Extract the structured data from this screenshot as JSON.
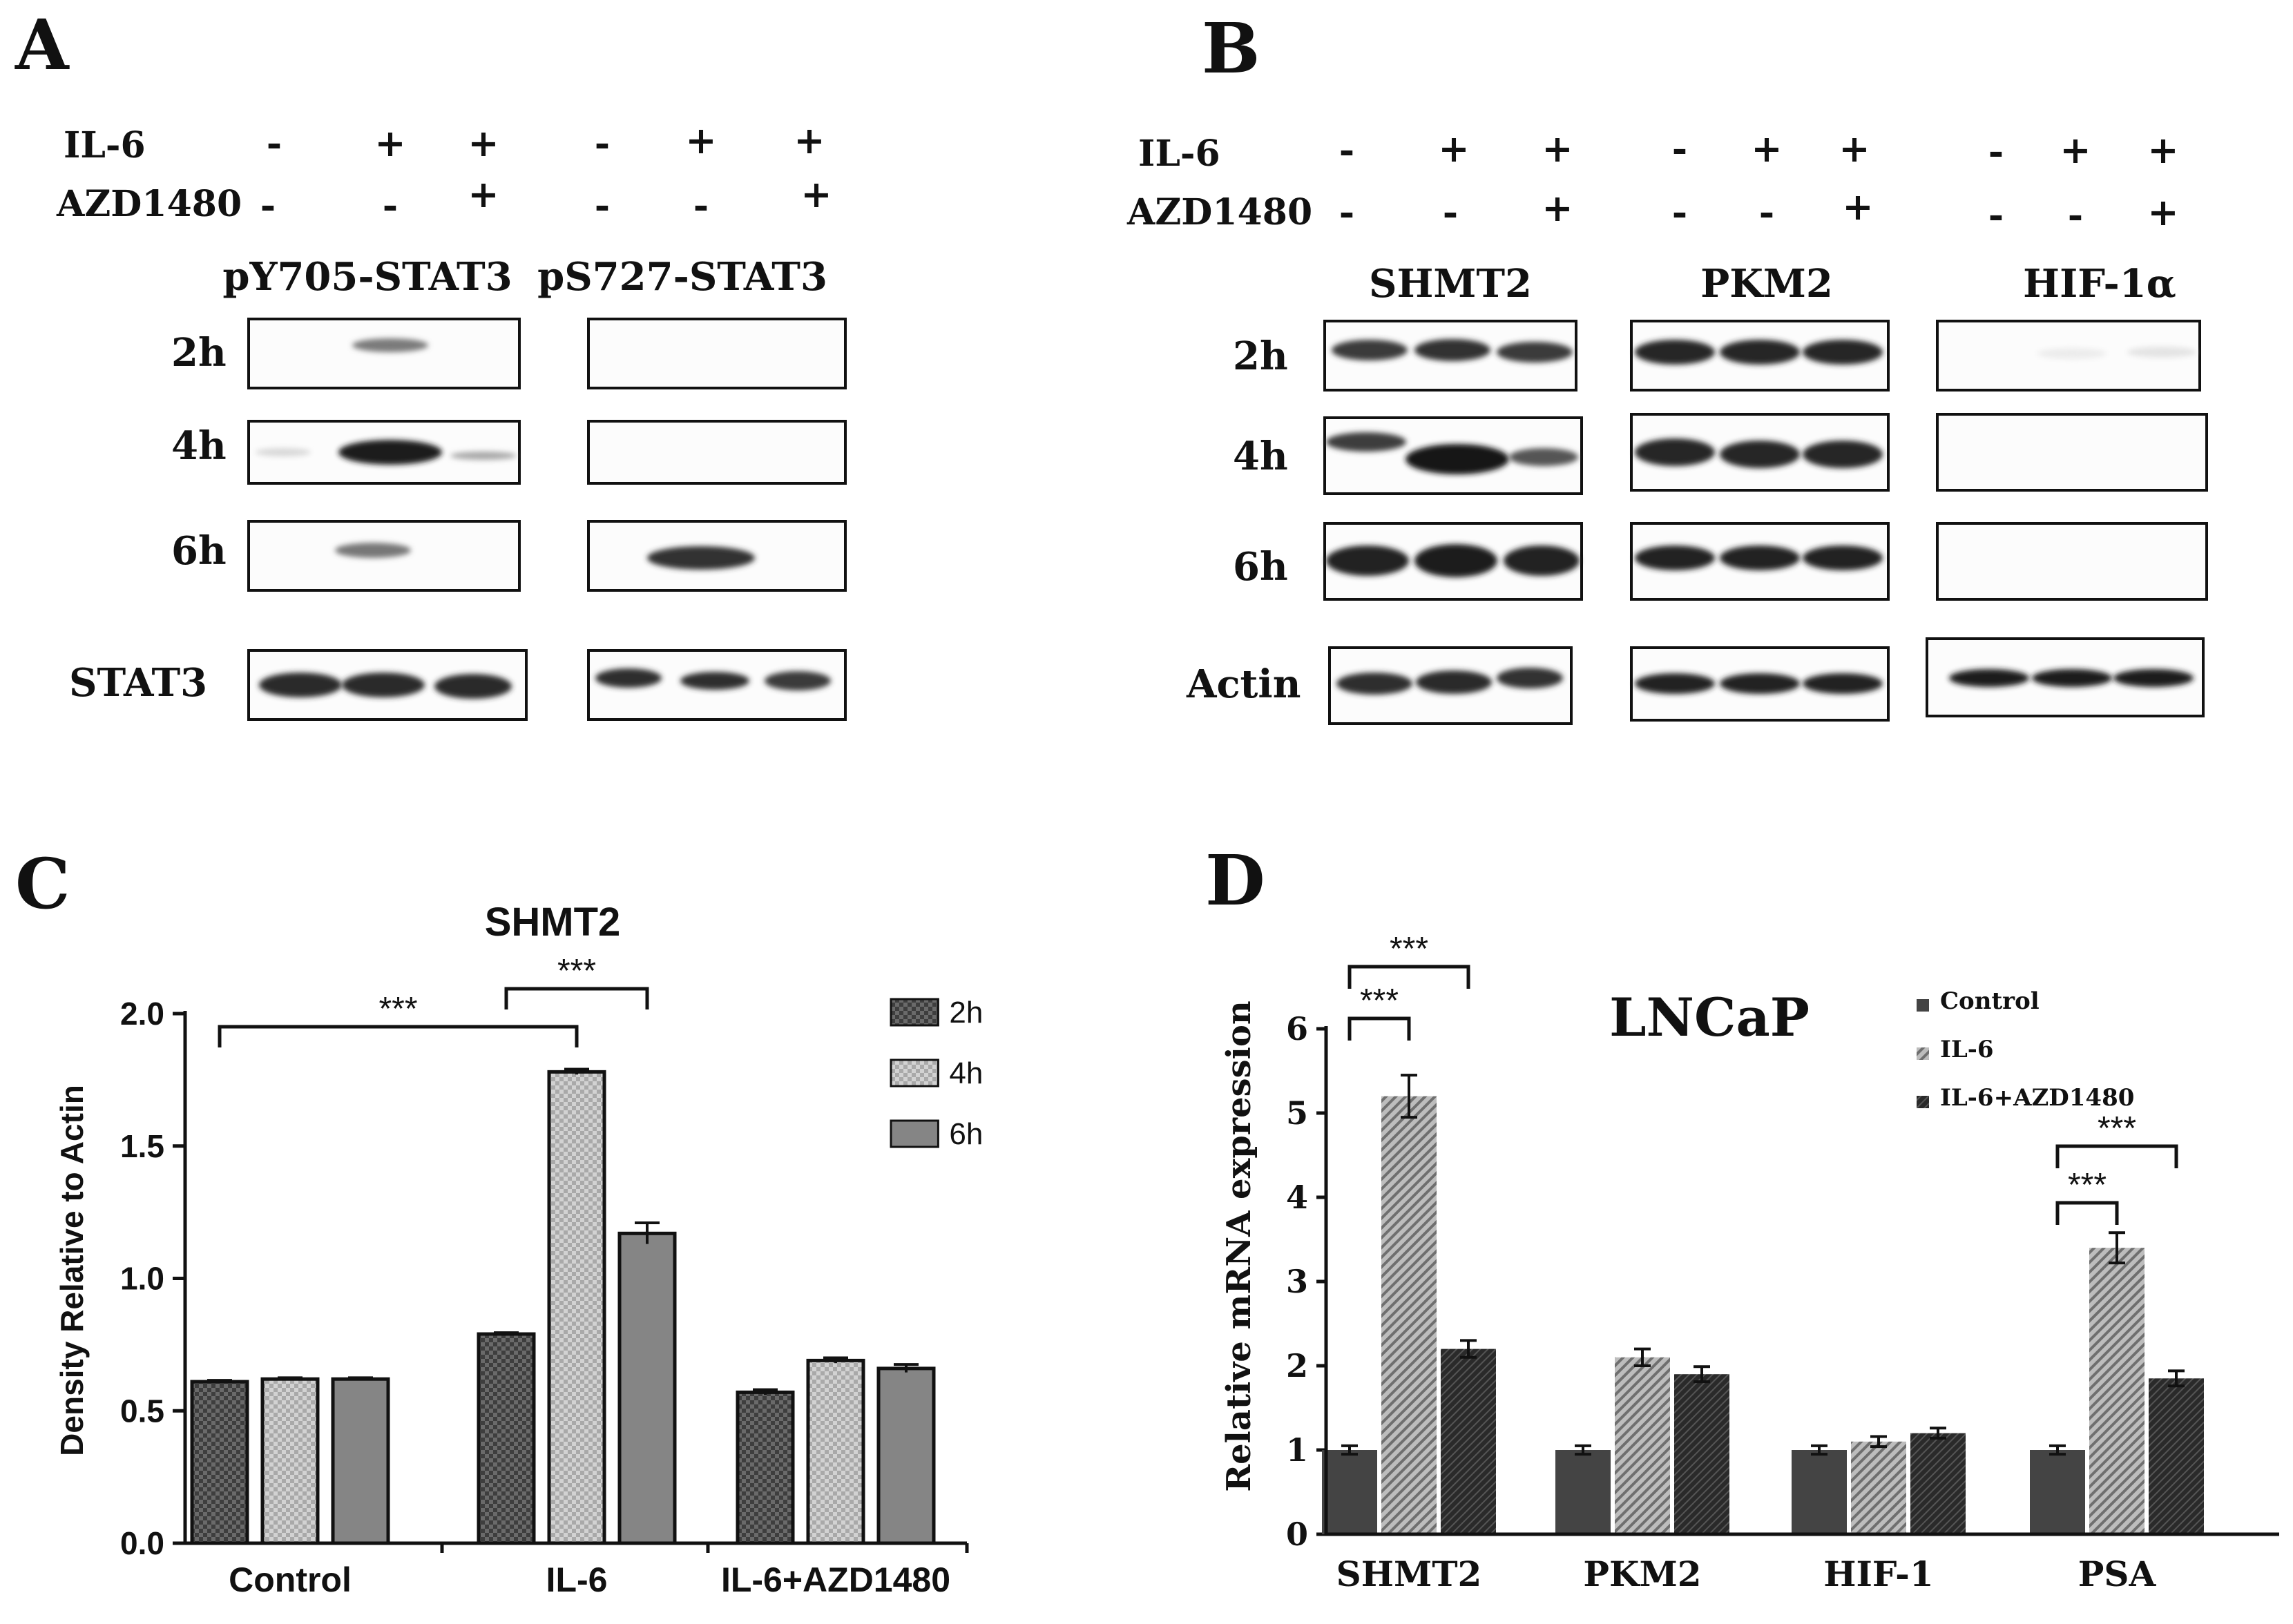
{
  "panels": {
    "A": {
      "label": "A",
      "treatments": [
        {
          "name": "IL-6",
          "left": [
            "-",
            "+",
            "+"
          ],
          "right": [
            "-",
            "+",
            "+"
          ]
        },
        {
          "name": "AZD1480",
          "left": [
            "-",
            "-",
            "+"
          ],
          "right": [
            "-",
            "-",
            "+"
          ]
        }
      ],
      "headers": [
        "pY705-STAT3",
        "pS727-STAT3"
      ],
      "times": [
        "2h",
        "4h",
        "6h"
      ],
      "loading": "STAT3"
    },
    "B": {
      "label": "B",
      "treatments": [
        {
          "name": "IL-6",
          "groups": [
            [
              "-",
              "+",
              "+"
            ],
            [
              "-",
              "+",
              "+"
            ],
            [
              "-",
              "+",
              "+"
            ]
          ]
        },
        {
          "name": "AZD1480",
          "groups": [
            [
              "-",
              "-",
              "+"
            ],
            [
              "-",
              "-",
              "+"
            ],
            [
              "-",
              "-",
              "+"
            ]
          ]
        }
      ],
      "headers": [
        "SHMT2",
        "PKM2",
        "HIF-1α"
      ],
      "times": [
        "2h",
        "4h",
        "6h"
      ],
      "loading": "Actin"
    },
    "C": {
      "label": "C"
    },
    "D": {
      "label": "D"
    }
  },
  "chart_data": [
    {
      "panel": "C",
      "type": "bar",
      "title": "SHMT2",
      "xlabel": "",
      "ylabel": "Density Relative to Actin",
      "ylim": [
        0,
        2.0
      ],
      "yticks": [
        "0.0",
        "0.5",
        "1.0",
        "1.5",
        "2.0"
      ],
      "categories": [
        "Control",
        "IL-6",
        "IL-6+AZD1480"
      ],
      "series": [
        {
          "name": "2h",
          "values": [
            0.61,
            0.79,
            0.57
          ],
          "errors": [
            0.005,
            0.005,
            0.01
          ],
          "color": "#4a4a4a",
          "pattern": "checker-dark"
        },
        {
          "name": "4h",
          "values": [
            0.62,
            1.78,
            0.69
          ],
          "errors": [
            0.005,
            0.01,
            0.01
          ],
          "color": "#b5b5b5",
          "pattern": "checker-light"
        },
        {
          "name": "6h",
          "values": [
            0.62,
            1.17,
            0.66
          ],
          "errors": [
            0.005,
            0.04,
            0.015
          ],
          "color": "#858585",
          "pattern": "solid"
        }
      ],
      "significance": [
        {
          "label": "***",
          "from": [
            0,
            0
          ],
          "to": [
            1,
            1
          ]
        },
        {
          "label": "***",
          "from": [
            1,
            0
          ],
          "to": [
            1,
            2
          ]
        }
      ],
      "legend": "top-right"
    },
    {
      "panel": "D",
      "type": "bar",
      "title": "LNCaP",
      "xlabel": "",
      "ylabel": "Relative mRNA expression",
      "ylim": [
        0,
        6
      ],
      "yticks": [
        "0",
        "1",
        "2",
        "3",
        "4",
        "5",
        "6"
      ],
      "categories": [
        "SHMT2",
        "PKM2",
        "HIF-1",
        "PSA"
      ],
      "series": [
        {
          "name": "Control",
          "values": [
            1.0,
            1.0,
            1.0,
            1.0
          ],
          "errors": [
            0.05,
            0.05,
            0.05,
            0.05
          ],
          "color": "#444444",
          "pattern": "solid"
        },
        {
          "name": "IL-6",
          "values": [
            5.2,
            2.1,
            1.1,
            3.4
          ],
          "errors": [
            0.25,
            0.1,
            0.06,
            0.18
          ],
          "color": "#9a9a9a",
          "pattern": "hatch"
        },
        {
          "name": "IL-6+AZD1480",
          "values": [
            2.2,
            1.9,
            1.2,
            1.85
          ],
          "errors": [
            0.1,
            0.09,
            0.06,
            0.09
          ],
          "color": "#2f2f2f",
          "pattern": "dense"
        }
      ],
      "significance": [
        {
          "label": "***",
          "from": [
            0,
            0
          ],
          "to": [
            0,
            1
          ]
        },
        {
          "label": "***",
          "from": [
            0,
            0
          ],
          "to": [
            0,
            2
          ]
        },
        {
          "label": "***",
          "from": [
            3,
            0
          ],
          "to": [
            3,
            1
          ]
        },
        {
          "label": "***",
          "from": [
            3,
            0
          ],
          "to": [
            3,
            2
          ]
        }
      ],
      "legend": "top-right"
    }
  ]
}
